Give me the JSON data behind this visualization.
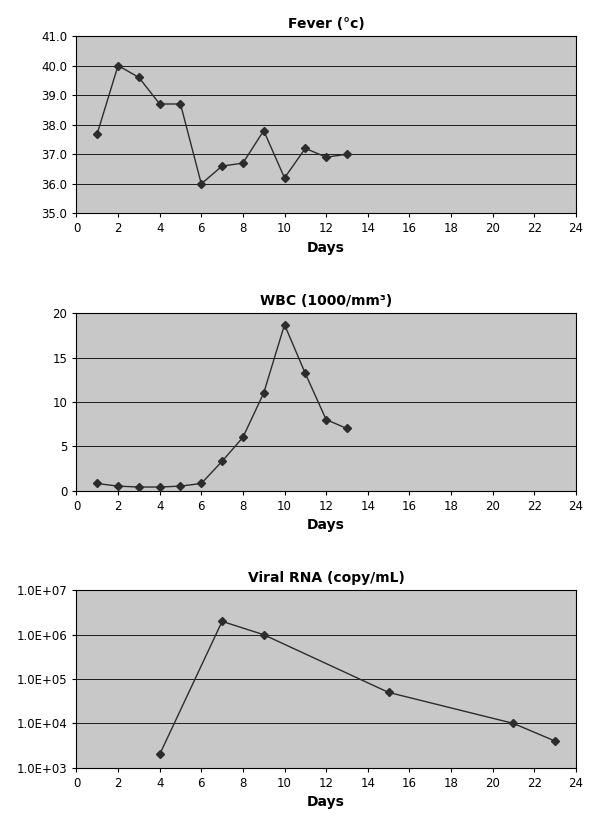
{
  "fever": {
    "title": "Fever (°c)",
    "x": [
      1,
      2,
      3,
      4,
      5,
      6,
      7,
      8,
      9,
      10,
      11,
      12,
      13
    ],
    "y": [
      37.7,
      40.0,
      39.6,
      38.7,
      38.7,
      36.0,
      36.6,
      36.7,
      37.8,
      36.2,
      37.2,
      36.9,
      37.0
    ],
    "xlabel": "Days",
    "xlim": [
      0,
      24
    ],
    "ylim": [
      35.0,
      41.0
    ],
    "yticks": [
      35.0,
      36.0,
      37.0,
      38.0,
      39.0,
      40.0,
      41.0
    ],
    "ytick_labels": [
      "35.0",
      "36.0",
      "37.0",
      "38.0",
      "39.0",
      "40.0",
      "41.0"
    ],
    "xticks": [
      0,
      2,
      4,
      6,
      8,
      10,
      12,
      14,
      16,
      18,
      20,
      22,
      24
    ]
  },
  "wbc": {
    "title": "WBC (1000/mm³)",
    "x": [
      1,
      2,
      3,
      4,
      5,
      6,
      7,
      8,
      9,
      10,
      11,
      12,
      13
    ],
    "y": [
      0.8,
      0.5,
      0.4,
      0.4,
      0.5,
      0.8,
      3.3,
      6.0,
      11.0,
      18.7,
      13.2,
      8.0,
      7.0
    ],
    "xlabel": "Days",
    "xlim": [
      0,
      24
    ],
    "ylim": [
      0,
      20
    ],
    "yticks": [
      0,
      5,
      10,
      15,
      20
    ],
    "ytick_labels": [
      "0",
      "5",
      "10",
      "15",
      "20"
    ],
    "xticks": [
      0,
      2,
      4,
      6,
      8,
      10,
      12,
      14,
      16,
      18,
      20,
      22,
      24
    ]
  },
  "viral": {
    "title": "Viral RNA (copy/mL)",
    "x": [
      4,
      7,
      9,
      15,
      21,
      23
    ],
    "y": [
      2000,
      2000000,
      1000000,
      50000,
      10000,
      4000
    ],
    "xlabel": "Days",
    "xlim": [
      0,
      24
    ],
    "ylim_log": [
      3,
      7
    ],
    "ytick_vals": [
      1000.0,
      10000.0,
      100000.0,
      1000000.0,
      10000000.0
    ],
    "ytick_labels": [
      "1.0E+03",
      "1.0E+04",
      "1.0E+05",
      "1.0E+06",
      "1.0E+07"
    ],
    "xticks": [
      0,
      2,
      4,
      6,
      8,
      10,
      12,
      14,
      16,
      18,
      20,
      22,
      24
    ]
  },
  "fig_bg_color": "#ffffff",
  "plot_bg_color": "#c8c8c8",
  "line_color": "#2c2c2c",
  "grid_color": "#000000",
  "marker": "D",
  "markersize": 4,
  "linewidth": 1.0,
  "title_fontsize": 10,
  "label_fontsize": 10,
  "tick_fontsize": 8.5,
  "spine_linewidth": 0.8,
  "grid_linewidth": 0.6
}
